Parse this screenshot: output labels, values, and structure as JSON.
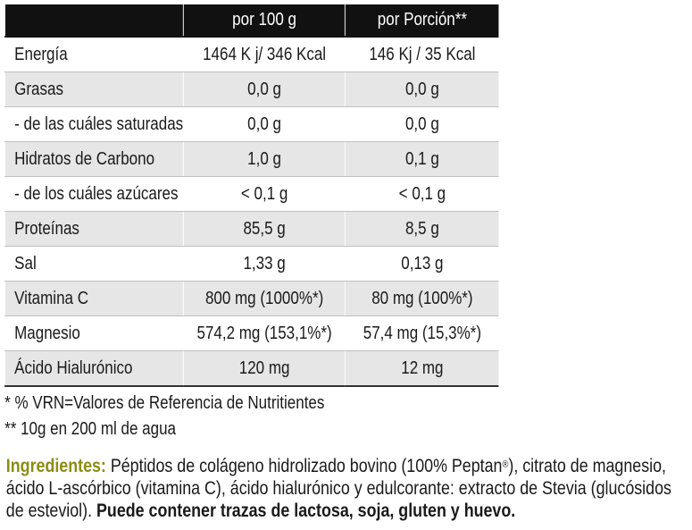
{
  "header": {
    "col2": "por 100 g",
    "col3": "por Porción**"
  },
  "rows": [
    [
      "Energía",
      "1464 K j/ 346 Kcal",
      "146 Kj / 35 Kcal"
    ],
    [
      "Grasas",
      "0,0 g",
      "0,0 g"
    ],
    [
      "- de las cuáles saturadas",
      "0,0 g",
      "0,0 g"
    ],
    [
      "Hidratos de Carbono",
      "1,0 g",
      "0,1 g"
    ],
    [
      "- de los cuáles azúcares",
      "< 0,1 g",
      "< 0,1 g"
    ],
    [
      "Proteínas",
      "85,5 g",
      "8,5 g"
    ],
    [
      "Sal",
      "1,33 g",
      "0,13 g"
    ],
    [
      "Vitamina C",
      "800 mg (1000%*)",
      "80 mg (100%*)"
    ],
    [
      "Magnesio",
      "574,2 mg (153,1%*)",
      "57,4 mg (15,3%*)"
    ],
    [
      "Ácido Hialurónico",
      "120 mg",
      "12 mg"
    ]
  ],
  "footnotes": [
    "* % VRN=Valores de Referencia de Nutritientes",
    "** 10g en 200 ml de agua"
  ],
  "ingredients": {
    "label": "Ingredientes:",
    "text": "Péptidos de colágeno hidrolizado bovino (100% Peptan",
    "reg": "®",
    "text2": "), citrato de magnesio, ácido L-ascórbico (vitamina C), ácido hialurónico y edulcorante: extracto de Stevia (glucósidos de esteviol).",
    "warning": "Puede contener trazas de lactosa, soja, gluten y huevo."
  }
}
